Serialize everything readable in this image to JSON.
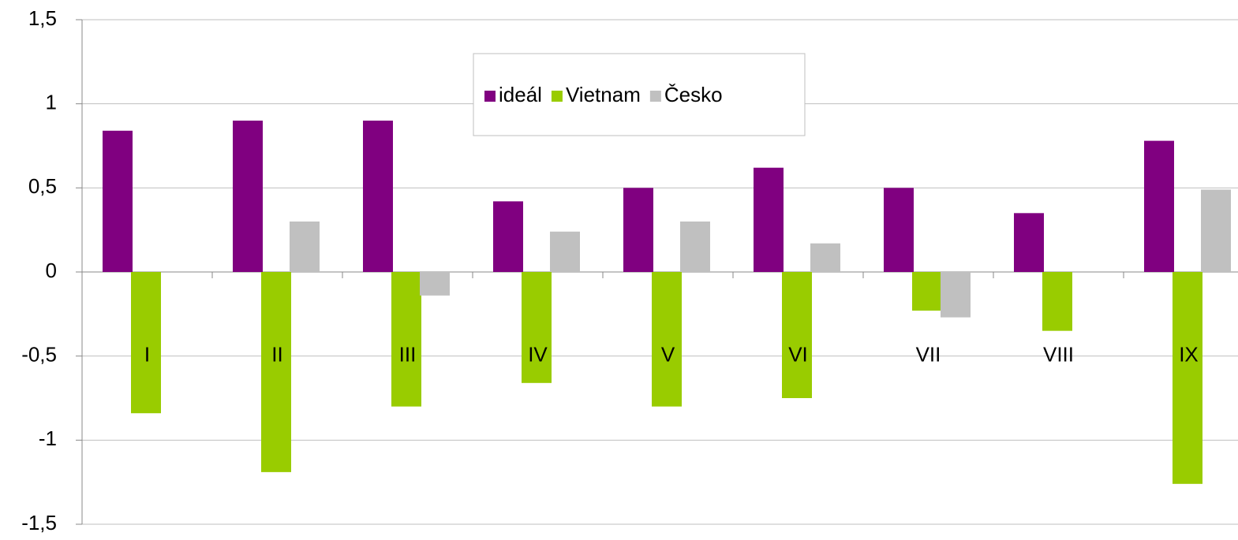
{
  "chart_data": {
    "type": "bar",
    "categories": [
      "I",
      "II",
      "III",
      "IV",
      "V",
      "VI",
      "VII",
      "VIII",
      "IX"
    ],
    "series": [
      {
        "name": "ideál",
        "color": "#800080",
        "values": [
          0.84,
          0.9,
          0.9,
          0.42,
          0.5,
          0.62,
          0.5,
          0.35,
          0.78
        ]
      },
      {
        "name": "Vietnam",
        "color": "#99cc00",
        "values": [
          -0.84,
          -1.19,
          -0.8,
          -0.66,
          -0.8,
          -0.75,
          -0.23,
          -0.35,
          -1.26
        ]
      },
      {
        "name": "Česko",
        "color": "#c0c0c0",
        "values": [
          null,
          0.3,
          -0.14,
          0.24,
          0.3,
          0.17,
          -0.27,
          null,
          0.49
        ]
      }
    ],
    "ylim": [
      -1.5,
      1.5
    ],
    "yticks": [
      {
        "value": -1.5,
        "label": "-1,5"
      },
      -1,
      {
        "value": -0.5,
        "label": "-0,5"
      },
      0,
      {
        "value": 0.5,
        "label": "0,5"
      },
      1,
      {
        "value": 1.5,
        "label": "1,5"
      }
    ],
    "grid": true,
    "legend": "top"
  }
}
